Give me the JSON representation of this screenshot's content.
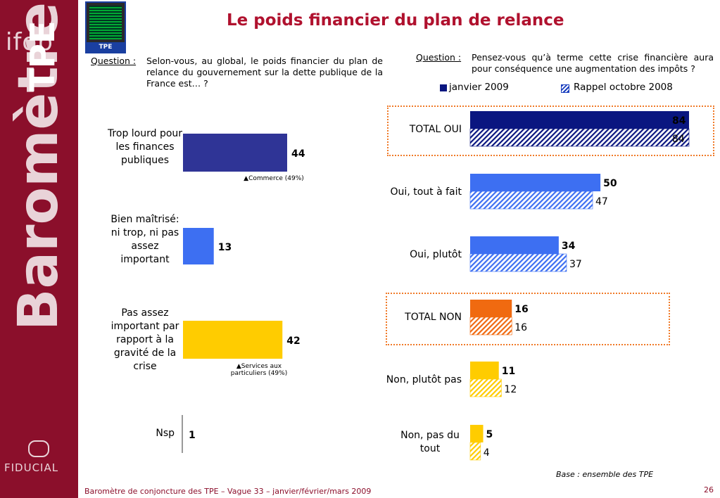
{
  "brand": {
    "ifop": "ifop",
    "vertical_main": "Baromètre",
    "vertical_des": "des",
    "vertical_tpe": "TPE",
    "fiducial": "FIDUCIAL",
    "thumb_tag": "TPE"
  },
  "title": "Le poids financier du plan de relance",
  "question_left": {
    "label": "Question :",
    "text": "Selon-vous, au global, le poids financier du plan de relance du gouvernement sur la dette publique de la France est… ?"
  },
  "question_right": {
    "label": "Question :",
    "text": "Pensez-vous qu’à terme cette crise financière aura pour conséquence une augmentation des impôts ?"
  },
  "colors": {
    "sidebar": "#8b0f2b",
    "title": "#b0112e",
    "navy": "#0a1680",
    "blue": "#3d6ff2",
    "indigo": "#2f3496",
    "orange": "#f06a10",
    "yellow": "#ffcc00",
    "frame": "#f07a28"
  },
  "chart_data": [
    {
      "type": "bar",
      "orientation": "horizontal",
      "categories": [
        "Trop lourd pour les finances publiques",
        "Bien maîtrisé: ni trop, ni pas assez important",
        "Pas assez important par rapport à la gravité de la crise",
        "Nsp"
      ],
      "values": [
        44,
        13,
        42,
        1
      ],
      "notes": [
        "▲Commerce (49%)",
        "",
        "▲Services aux particuliers (49%)",
        ""
      ]
    },
    {
      "type": "bar",
      "orientation": "horizontal",
      "legend": [
        "janvier 2009",
        "Rappel octobre 2008"
      ],
      "legend_placement": "top",
      "categories": [
        "TOTAL OUI",
        "Oui, tout à fait",
        "Oui, plutôt",
        "TOTAL NON",
        "Non, plutôt pas",
        "Non, pas du tout"
      ],
      "series": [
        {
          "name": "janvier 2009",
          "values": [
            84,
            50,
            34,
            16,
            11,
            5
          ]
        },
        {
          "name": "Rappel octobre 2008",
          "values": [
            84,
            47,
            37,
            16,
            12,
            4
          ]
        }
      ]
    }
  ],
  "base": "Base : ensemble des TPE",
  "footer": "Baromètre de conjoncture des TPE – Vague 33 – janvier/février/mars 2009",
  "page_number": "26"
}
